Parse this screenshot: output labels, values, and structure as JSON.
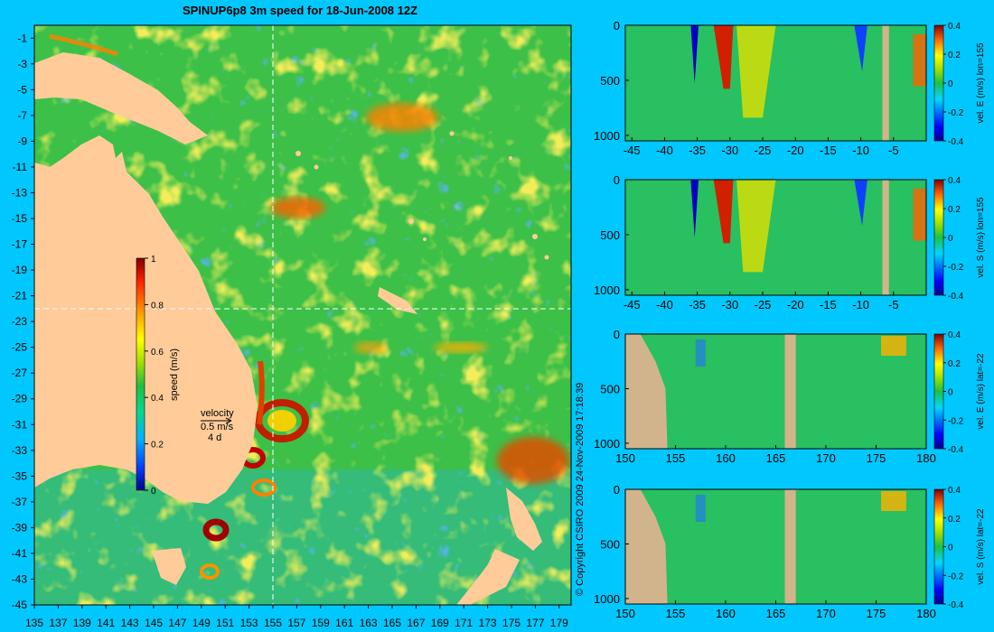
{
  "page": {
    "background": "#00c8ff"
  },
  "map": {
    "title": "SPINUP6p8 3m speed for 18-Jun-2008 12Z",
    "lon_ticks": [
      135,
      137,
      139,
      141,
      143,
      145,
      147,
      149,
      151,
      153,
      155,
      157,
      159,
      161,
      163,
      165,
      167,
      169,
      171,
      173,
      175,
      177,
      179
    ],
    "lat_ticks": [
      -1,
      -3,
      -5,
      -7,
      -9,
      -11,
      -13,
      -15,
      -17,
      -19,
      -21,
      -23,
      -25,
      -27,
      -29,
      -31,
      -33,
      -35,
      -37,
      -39,
      -41,
      -43,
      -45
    ],
    "section_lon": 155,
    "section_lat": -22,
    "colorbar": {
      "label": "speed (m/s)",
      "ticks": [
        "0",
        "0.2",
        "0.4",
        "0.6",
        "0.8",
        "1"
      ]
    },
    "velocity_key": {
      "title": "velocity",
      "speed": "0.5 m/s",
      "time": "4 d"
    },
    "copyright": "© Copyright CSIRO 2009   24-Nov-2009 17:18:39"
  },
  "sections": [
    {
      "x_ticks": [
        "-45",
        "-40",
        "-35",
        "-30",
        "-25",
        "-20",
        "-15",
        "-10",
        "-5"
      ],
      "y_ticks": [
        "0",
        "500",
        "1000"
      ],
      "colorbar_ticks": [
        "0.4",
        "0.2",
        "0",
        "-0.2",
        "-0.4"
      ],
      "label": "vel. E (m/s) lon=155"
    },
    {
      "x_ticks": [
        "-45",
        "-40",
        "-35",
        "-30",
        "-25",
        "-20",
        "-15",
        "-10",
        "-5"
      ],
      "y_ticks": [
        "0",
        "500",
        "1000"
      ],
      "colorbar_ticks": [
        "0.4",
        "0.2",
        "0",
        "-0.2",
        "-0.4"
      ],
      "label": "vel. S (m/s) lon=155"
    },
    {
      "x_ticks": [
        "150",
        "155",
        "160",
        "165",
        "170",
        "175",
        "180"
      ],
      "y_ticks": [
        "0",
        "500",
        "1000"
      ],
      "colorbar_ticks": [
        "0.4",
        "0.2",
        "0",
        "-0.2",
        "-0.4"
      ],
      "label": "vel. E (m/s) lat=-22"
    },
    {
      "x_ticks": [
        "150",
        "155",
        "160",
        "165",
        "170",
        "175",
        "180"
      ],
      "y_ticks": [
        "0",
        "500",
        "1000"
      ],
      "colorbar_ticks": [
        "0.4",
        "0.2",
        "0",
        "-0.2",
        "-0.4"
      ],
      "label": "vel. S (m/s) lat=-22"
    }
  ],
  "chart_data": [
    {
      "type": "heatmap",
      "title": "SPINUP6p8 3m speed for 18-Jun-2008 12Z",
      "x": [
        135,
        179
      ],
      "y": [
        -45,
        -1
      ],
      "xlim": [
        135,
        180
      ],
      "ylim": [
        -45,
        0
      ],
      "colorbar": {
        "label": "speed (m/s)",
        "range": [
          0,
          1
        ]
      }
    },
    {
      "type": "heatmap",
      "label": "vel. E (m/s) lon=155",
      "xlim": [
        -46,
        0
      ],
      "ylim": [
        1050,
        0
      ],
      "crange": [
        -0.4,
        0.4
      ]
    },
    {
      "type": "heatmap",
      "label": "vel. S (m/s) lon=155",
      "xlim": [
        -46,
        0
      ],
      "ylim": [
        1050,
        0
      ],
      "crange": [
        -0.4,
        0.4
      ]
    },
    {
      "type": "heatmap",
      "label": "vel. E (m/s) lat=-22",
      "xlim": [
        150,
        180
      ],
      "ylim": [
        1050,
        0
      ],
      "crange": [
        -0.4,
        0.4
      ]
    },
    {
      "type": "heatmap",
      "label": "vel. S (m/s) lat=-22",
      "xlim": [
        150,
        180
      ],
      "ylim": [
        1050,
        0
      ],
      "crange": [
        -0.4,
        0.4
      ]
    }
  ]
}
